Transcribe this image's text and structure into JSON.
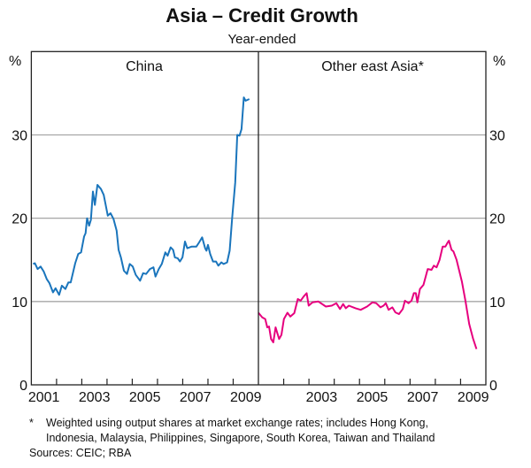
{
  "chart_data": [
    {
      "type": "line",
      "title": "Asia – Credit Growth",
      "subtitle": "Year-ended",
      "panel_title": "China",
      "ylabel": "%",
      "ylim": [
        0,
        40
      ],
      "yticks": [
        0,
        10,
        20,
        30
      ],
      "xlim": [
        2001,
        2010
      ],
      "xtick_labels": [
        "2001",
        "2003",
        "2005",
        "2007",
        "2009"
      ],
      "grid": true,
      "color": "#1a75bc",
      "series": [
        {
          "name": "China",
          "x": [
            2001.07,
            2001.14,
            2001.25,
            2001.37,
            2001.49,
            2001.61,
            2001.72,
            2001.86,
            2001.96,
            2002.1,
            2002.21,
            2002.35,
            2002.47,
            2002.56,
            2002.74,
            2002.86,
            2002.97,
            2003.09,
            2003.15,
            2003.21,
            2003.29,
            2003.36,
            2003.44,
            2003.52,
            2003.62,
            2003.76,
            2003.87,
            2004.03,
            2004.14,
            2004.26,
            2004.38,
            2004.46,
            2004.55,
            2004.67,
            2004.79,
            2004.9,
            2005.02,
            2005.14,
            2005.31,
            2005.43,
            2005.55,
            2005.7,
            2005.84,
            2005.92,
            2006.05,
            2006.17,
            2006.31,
            2006.4,
            2006.52,
            2006.62,
            2006.69,
            2006.8,
            2006.89,
            2006.99,
            2007.09,
            2007.18,
            2007.36,
            2007.54,
            2007.65,
            2007.77,
            2007.89,
            2007.94,
            2008.0,
            2008.09,
            2008.2,
            2008.32,
            2008.41,
            2008.53,
            2008.62,
            2008.76,
            2008.86,
            2008.96,
            2009.08,
            2009.16,
            2009.25,
            2009.33,
            2009.42,
            2009.49,
            2009.64
          ],
          "values": [
            14.5,
            14.6,
            13.9,
            14.2,
            13.6,
            12.7,
            12.2,
            11.1,
            11.6,
            10.8,
            11.9,
            11.5,
            12.3,
            12.3,
            14.6,
            15.7,
            15.9,
            17.8,
            18.2,
            20.0,
            19.1,
            19.8,
            23.2,
            21.6,
            24.0,
            23.5,
            22.8,
            20.3,
            20.6,
            19.9,
            18.5,
            16.2,
            15.3,
            13.7,
            13.3,
            14.5,
            14.2,
            13.2,
            12.5,
            13.4,
            13.3,
            13.9,
            14.1,
            13.0,
            13.9,
            14.5,
            15.9,
            15.5,
            16.5,
            16.2,
            15.3,
            15.2,
            14.8,
            15.3,
            17.2,
            16.4,
            16.6,
            16.6,
            17.1,
            17.7,
            16.4,
            16.1,
            16.8,
            15.7,
            14.8,
            14.8,
            14.3,
            14.7,
            14.5,
            14.7,
            16.1,
            20.0,
            24.3,
            30.0,
            29.9,
            30.7,
            34.5,
            34.1,
            34.3
          ]
        }
      ]
    },
    {
      "type": "line",
      "panel_title": "Other east Asia*",
      "ylabel": "%",
      "ylim": [
        0,
        40
      ],
      "yticks": [
        0,
        10,
        20,
        30
      ],
      "xlim": [
        2001,
        2010
      ],
      "xtick_labels": [
        "2003",
        "2005",
        "2007",
        "2009"
      ],
      "grid": true,
      "color": "#e6007e",
      "series": [
        {
          "name": "Other east Asia",
          "x": [
            2001.0,
            2001.15,
            2001.27,
            2001.35,
            2001.42,
            2001.5,
            2001.59,
            2001.68,
            2001.82,
            2001.91,
            2002.01,
            2002.15,
            2002.26,
            2002.42,
            2002.56,
            2002.67,
            2002.79,
            2002.91,
            2002.99,
            2003.14,
            2003.37,
            2003.67,
            2003.9,
            2004.08,
            2004.23,
            2004.35,
            2004.46,
            2004.58,
            2004.84,
            2005.05,
            2005.3,
            2005.51,
            2005.66,
            2005.83,
            2005.95,
            2006.04,
            2006.15,
            2006.3,
            2006.42,
            2006.56,
            2006.71,
            2006.8,
            2006.94,
            2007.06,
            2007.15,
            2007.23,
            2007.29,
            2007.39,
            2007.53,
            2007.7,
            2007.85,
            2007.94,
            2008.05,
            2008.17,
            2008.29,
            2008.4,
            2008.49,
            2008.54,
            2008.64,
            2008.72,
            2008.84,
            2009.05,
            2009.19,
            2009.34,
            2009.49,
            2009.63
          ],
          "values": [
            8.65,
            8.1,
            7.9,
            6.9,
            7.0,
            5.5,
            5.1,
            6.9,
            5.5,
            6.0,
            7.9,
            8.65,
            8.2,
            8.6,
            10.3,
            10.1,
            10.6,
            11.0,
            9.5,
            9.9,
            10.0,
            9.4,
            9.5,
            9.8,
            9.1,
            9.7,
            9.2,
            9.5,
            9.2,
            9.0,
            9.4,
            9.9,
            9.8,
            9.3,
            9.5,
            9.8,
            9.0,
            9.3,
            8.7,
            8.5,
            9.1,
            10.1,
            9.8,
            10.1,
            11.0,
            11.0,
            9.9,
            11.5,
            12.0,
            13.9,
            13.8,
            14.3,
            14.1,
            15.0,
            16.6,
            16.6,
            17.1,
            17.3,
            16.2,
            16.0,
            15.0,
            12.4,
            10.1,
            7.3,
            5.6,
            4.3
          ]
        }
      ]
    }
  ],
  "footnote": {
    "marker": "*",
    "line1": "Weighted using output shares at market exchange rates; includes Hong Kong,",
    "line2": "Indonesia, Malaysia, Philippines, Singapore, South Korea, Taiwan and Thailand",
    "sources": "Sources: CEIC; RBA"
  }
}
